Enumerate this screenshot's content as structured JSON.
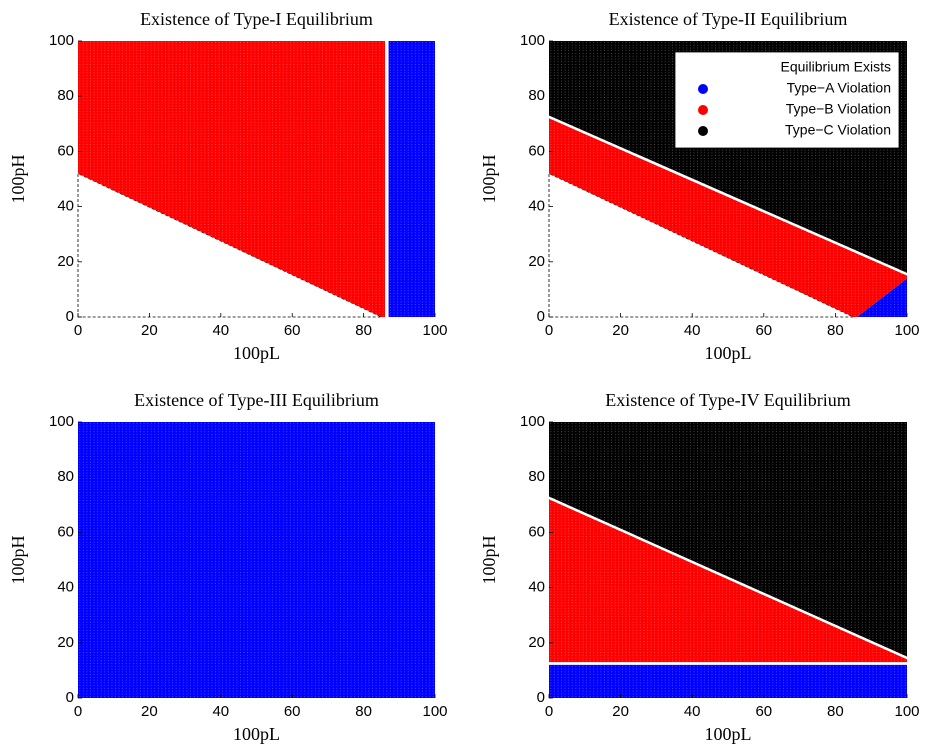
{
  "chart_data": [
    {
      "type": "region",
      "title": "Existence of Type-I Equilibrium",
      "xlabel": "100pL",
      "ylabel": "100pH",
      "xlim": [
        0,
        100
      ],
      "ylim": [
        0,
        100
      ],
      "xticks": [
        0,
        20,
        40,
        60,
        80,
        100
      ],
      "yticks": [
        0,
        20,
        40,
        60,
        80,
        100
      ],
      "series": [
        {
          "color": "#ffffff",
          "linestyle": "dashed",
          "x": [
            0,
            0,
            85
          ],
          "y": [
            0,
            52,
            0
          ]
        },
        {
          "color": "#ff0000",
          "x": [
            0,
            0,
            86,
            86,
            85
          ],
          "y": [
            52,
            100,
            100,
            0,
            0
          ]
        },
        {
          "color": "#0000ff",
          "x": [
            87,
            100,
            100,
            87
          ],
          "y": [
            0,
            0,
            100,
            100
          ]
        }
      ]
    },
    {
      "type": "region",
      "title": "Existence of Type-II Equilibrium",
      "xlabel": "100pL",
      "ylabel": "100pH",
      "xlim": [
        0,
        100
      ],
      "ylim": [
        0,
        100
      ],
      "xticks": [
        0,
        20,
        40,
        60,
        80,
        100
      ],
      "yticks": [
        0,
        20,
        40,
        60,
        80,
        100
      ],
      "legend": "upper right",
      "series": [
        {
          "name": "Equilibrium Exists",
          "color": "#ffffff",
          "linestyle": "dashed",
          "x": [
            0,
            0,
            85
          ],
          "y": [
            0,
            52,
            0
          ]
        },
        {
          "name": "Type−A Violation",
          "color": "#0000ff",
          "x": [
            86,
            100,
            100
          ],
          "y": [
            0,
            0,
            14
          ]
        },
        {
          "name": "Type−B Violation",
          "color": "#ff0000",
          "x": [
            0,
            0,
            100,
            100,
            86,
            85
          ],
          "y": [
            52,
            72,
            15,
            14,
            0,
            0
          ]
        },
        {
          "name": "Type−C Violation",
          "color": "#000000",
          "x": [
            0,
            0,
            100,
            100
          ],
          "y": [
            73,
            100,
            100,
            16
          ]
        }
      ]
    },
    {
      "type": "region",
      "title": "Existence of Type-III Equilibrium",
      "xlabel": "100pL",
      "ylabel": "100pH",
      "xlim": [
        0,
        100
      ],
      "ylim": [
        0,
        100
      ],
      "xticks": [
        0,
        20,
        40,
        60,
        80,
        100
      ],
      "yticks": [
        0,
        20,
        40,
        60,
        80,
        100
      ],
      "series": [
        {
          "color": "#0000ff",
          "x": [
            0,
            100,
            100,
            0
          ],
          "y": [
            0,
            0,
            100,
            100
          ]
        }
      ]
    },
    {
      "type": "region",
      "title": "Existence of Type-IV Equilibrium",
      "xlabel": "100pL",
      "ylabel": "100pH",
      "xlim": [
        0,
        100
      ],
      "ylim": [
        0,
        100
      ],
      "xticks": [
        0,
        20,
        40,
        60,
        80,
        100
      ],
      "yticks": [
        0,
        20,
        40,
        60,
        80,
        100
      ],
      "series": [
        {
          "color": "#0000ff",
          "x": [
            0,
            100,
            100,
            0
          ],
          "y": [
            0,
            0,
            12,
            12
          ]
        },
        {
          "color": "#ff0000",
          "x": [
            0,
            0,
            100,
            100
          ],
          "y": [
            13,
            72,
            14,
            13
          ]
        },
        {
          "color": "#000000",
          "x": [
            0,
            0,
            100,
            100
          ],
          "y": [
            73,
            100,
            100,
            15
          ]
        }
      ]
    }
  ]
}
